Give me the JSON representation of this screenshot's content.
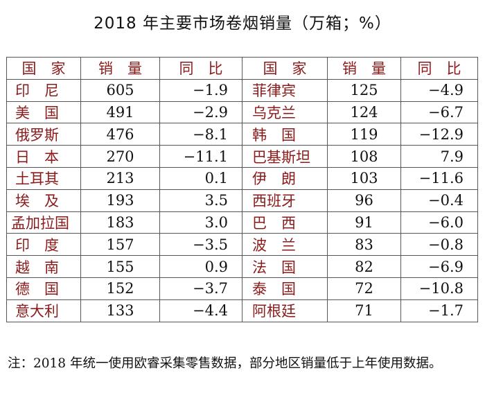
{
  "title": "2018 年主要市场卷烟销量（万箱；%）",
  "headers": {
    "country_left": "国　家",
    "volume_left": "销　量",
    "yoy_left": "同　比",
    "country_right": "国　家",
    "volume_right": "销　量",
    "yoy_right": "同　比"
  },
  "rows": [
    {
      "left": {
        "country": "印　尼",
        "volume": "605",
        "yoy": "−1.9"
      },
      "right": {
        "country": "菲律宾",
        "volume": "125",
        "yoy": "−4.9"
      }
    },
    {
      "left": {
        "country": "美　国",
        "volume": "491",
        "yoy": "−2.9"
      },
      "right": {
        "country": "乌克兰",
        "volume": "124",
        "yoy": "−6.7"
      }
    },
    {
      "left": {
        "country": "俄罗斯",
        "volume": "476",
        "yoy": "−8.1"
      },
      "right": {
        "country": "韩　国",
        "volume": "119",
        "yoy": "−12.9"
      }
    },
    {
      "left": {
        "country": "日　本",
        "volume": "270",
        "yoy": "−11.1"
      },
      "right": {
        "country": "巴基斯坦",
        "volume": "108",
        "yoy": "7.9"
      }
    },
    {
      "left": {
        "country": "土耳其",
        "volume": "213",
        "yoy": "0.1"
      },
      "right": {
        "country": "伊　朗",
        "volume": "103",
        "yoy": "−11.6"
      }
    },
    {
      "left": {
        "country": "埃　及",
        "volume": "193",
        "yoy": "3.5"
      },
      "right": {
        "country": "西班牙",
        "volume": "96",
        "yoy": "−0.4"
      }
    },
    {
      "left": {
        "country": "孟加拉国",
        "volume": "183",
        "yoy": "3.0"
      },
      "right": {
        "country": "巴　西",
        "volume": "91",
        "yoy": "−6.0"
      }
    },
    {
      "left": {
        "country": "印　度",
        "volume": "157",
        "yoy": "−3.5"
      },
      "right": {
        "country": "波　兰",
        "volume": "83",
        "yoy": "−0.8"
      }
    },
    {
      "left": {
        "country": "越　南",
        "volume": "155",
        "yoy": "0.9"
      },
      "right": {
        "country": "法　国",
        "volume": "82",
        "yoy": "−6.9"
      }
    },
    {
      "left": {
        "country": "德　国",
        "volume": "152",
        "yoy": "−3.7"
      },
      "right": {
        "country": "泰　国",
        "volume": "72",
        "yoy": "−10.8"
      }
    },
    {
      "left": {
        "country": "意大利",
        "volume": "133",
        "yoy": "−4.4"
      },
      "right": {
        "country": "阿根廷",
        "volume": "71",
        "yoy": "−1.7"
      }
    }
  ],
  "note": "注：2018 年统一使用欧睿采集零售数据，部分地区销量低于上年使用数据。",
  "colors": {
    "header_text": "#8b1a1a",
    "country_text": "#8b1a1a",
    "number_text": "#111111",
    "border": "#555555"
  }
}
